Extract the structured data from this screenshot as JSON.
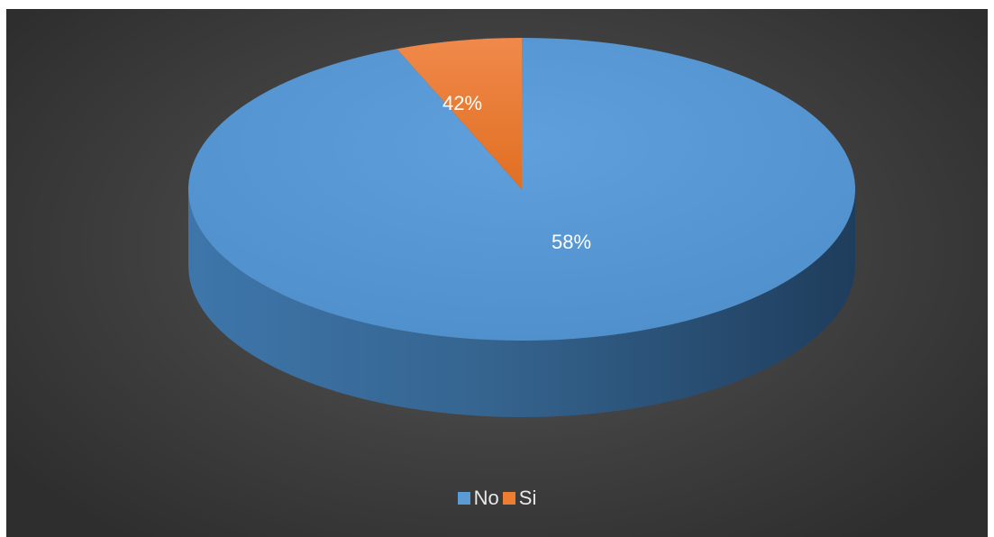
{
  "chart_data": {
    "type": "pie",
    "style": "3d",
    "categories": [
      "No",
      "Si"
    ],
    "values": [
      58,
      42
    ],
    "data_labels": [
      "58%",
      "42%"
    ],
    "colors": [
      "#5b9bd5",
      "#ed7d31"
    ],
    "background": "#404040",
    "legend": "bottom",
    "title": ""
  }
}
